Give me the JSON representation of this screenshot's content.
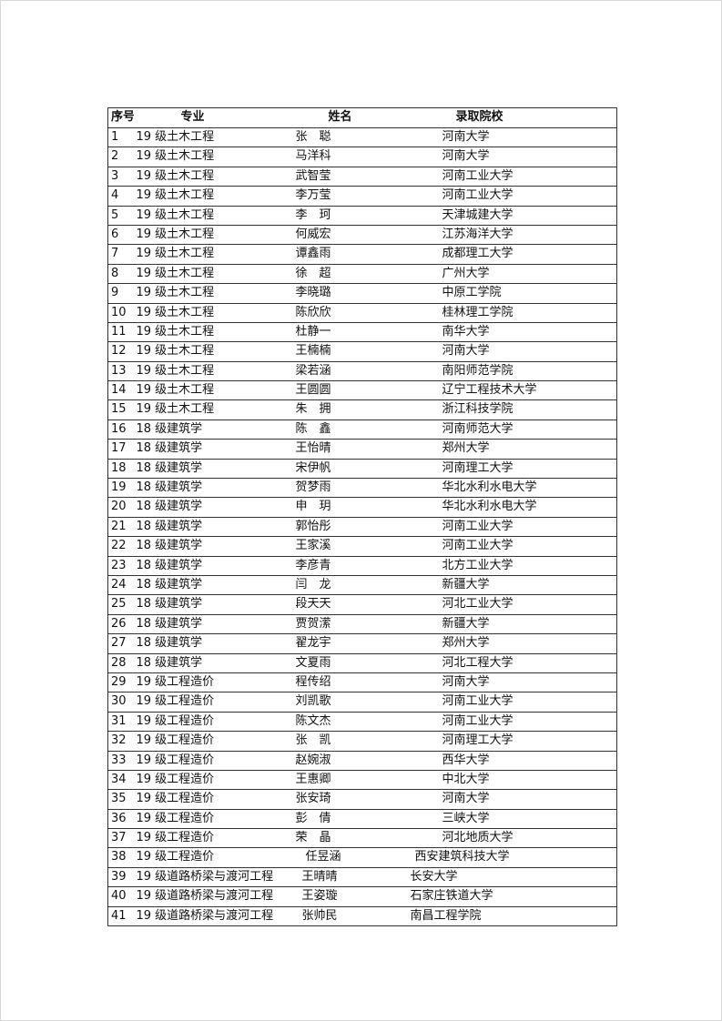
{
  "table": {
    "headers": [
      "序号",
      "专业",
      "姓名",
      "录取院校"
    ],
    "rows": [
      [
        "1",
        "19 级土木工程",
        "张　聪",
        "河南大学"
      ],
      [
        "2",
        "19 级土木工程",
        "马洋科",
        "河南大学"
      ],
      [
        "3",
        "19 级土木工程",
        "武智莹",
        "河南工业大学"
      ],
      [
        "4",
        "19 级土木工程",
        "李万莹",
        "河南工业大学"
      ],
      [
        "5",
        "19 级土木工程",
        "李　珂",
        "天津城建大学"
      ],
      [
        "6",
        "19 级土木工程",
        "何威宏",
        "江苏海洋大学"
      ],
      [
        "7",
        "19 级土木工程",
        "谭鑫雨",
        "成都理工大学"
      ],
      [
        "8",
        "19 级土木工程",
        "徐　超",
        "广州大学"
      ],
      [
        "9",
        "19 级土木工程",
        "李晓璐",
        "中原工学院"
      ],
      [
        "10",
        "19 级土木工程",
        "陈欣欣",
        "桂林理工学院"
      ],
      [
        "11",
        "19 级土木工程",
        "杜静一",
        "南华大学"
      ],
      [
        "12",
        "19 级土木工程",
        "王楠楠",
        "河南大学"
      ],
      [
        "13",
        "19 级土木工程",
        "梁若涵",
        "南阳师范学院"
      ],
      [
        "14",
        "19 级土木工程",
        "王圆圆",
        "辽宁工程技术大学"
      ],
      [
        "15",
        "19 级土木工程",
        "朱　拥",
        "浙江科技学院"
      ],
      [
        "16",
        "18 级建筑学",
        "陈　鑫",
        "河南师范大学"
      ],
      [
        "17",
        "18 级建筑学",
        "王怡晴",
        "郑州大学"
      ],
      [
        "18",
        "18 级建筑学",
        "宋伊帆",
        "河南理工大学"
      ],
      [
        "19",
        "18 级建筑学",
        "贺梦雨",
        "华北水利水电大学"
      ],
      [
        "20",
        "18 级建筑学",
        "申　玥",
        "华北水利水电大学"
      ],
      [
        "21",
        "18 级建筑学",
        "郭怡彤",
        "河南工业大学"
      ],
      [
        "22",
        "18 级建筑学",
        "王家溪",
        "河南工业大学"
      ],
      [
        "23",
        "18 级建筑学",
        "李彦青",
        "北方工业大学"
      ],
      [
        "24",
        "18 级建筑学",
        "闫　龙",
        "新疆大学"
      ],
      [
        "25",
        "18 级建筑学",
        "段天天",
        "河北工业大学"
      ],
      [
        "26",
        "18 级建筑学",
        "贾贺潆",
        "新疆大学"
      ],
      [
        "27",
        "18 级建筑学",
        "翟龙宇",
        "郑州大学"
      ],
      [
        "28",
        "18 级建筑学",
        "文夏雨",
        "河北工程大学"
      ],
      [
        "29",
        "19 级工程造价",
        "程传绍",
        "河南大学"
      ],
      [
        "30",
        "19 级工程造价",
        "刘凯歌",
        "河南工业大学"
      ],
      [
        "31",
        "19 级工程造价",
        "陈文杰",
        "河南工业大学"
      ],
      [
        "32",
        "19 级工程造价",
        "张　凯",
        "河南理工大学"
      ],
      [
        "33",
        "19 级工程造价",
        "赵婉淑",
        "西华大学"
      ],
      [
        "34",
        "19 级工程造价",
        "王惠卿",
        "中北大学"
      ],
      [
        "35",
        "19 级工程造价",
        "张安琦",
        "河南大学"
      ],
      [
        "36",
        "19 级工程造价",
        "彭　倩",
        "三峡大学"
      ],
      [
        "37",
        "19 级工程造价",
        "荣　晶",
        "河北地质大学"
      ],
      [
        "38",
        "19 级工程造价",
        "任昱涵",
        "西安建筑科技大学"
      ],
      [
        "39",
        "19 级道路桥梁与渡河工程",
        "王晴晴",
        "长安大学"
      ],
      [
        "40",
        "19 级道路桥梁与渡河工程",
        "王姿璇",
        "石家庄铁道大学"
      ],
      [
        "41",
        "19 级道路桥梁与渡河工程",
        "张帅民",
        "南昌工程学院"
      ]
    ]
  }
}
